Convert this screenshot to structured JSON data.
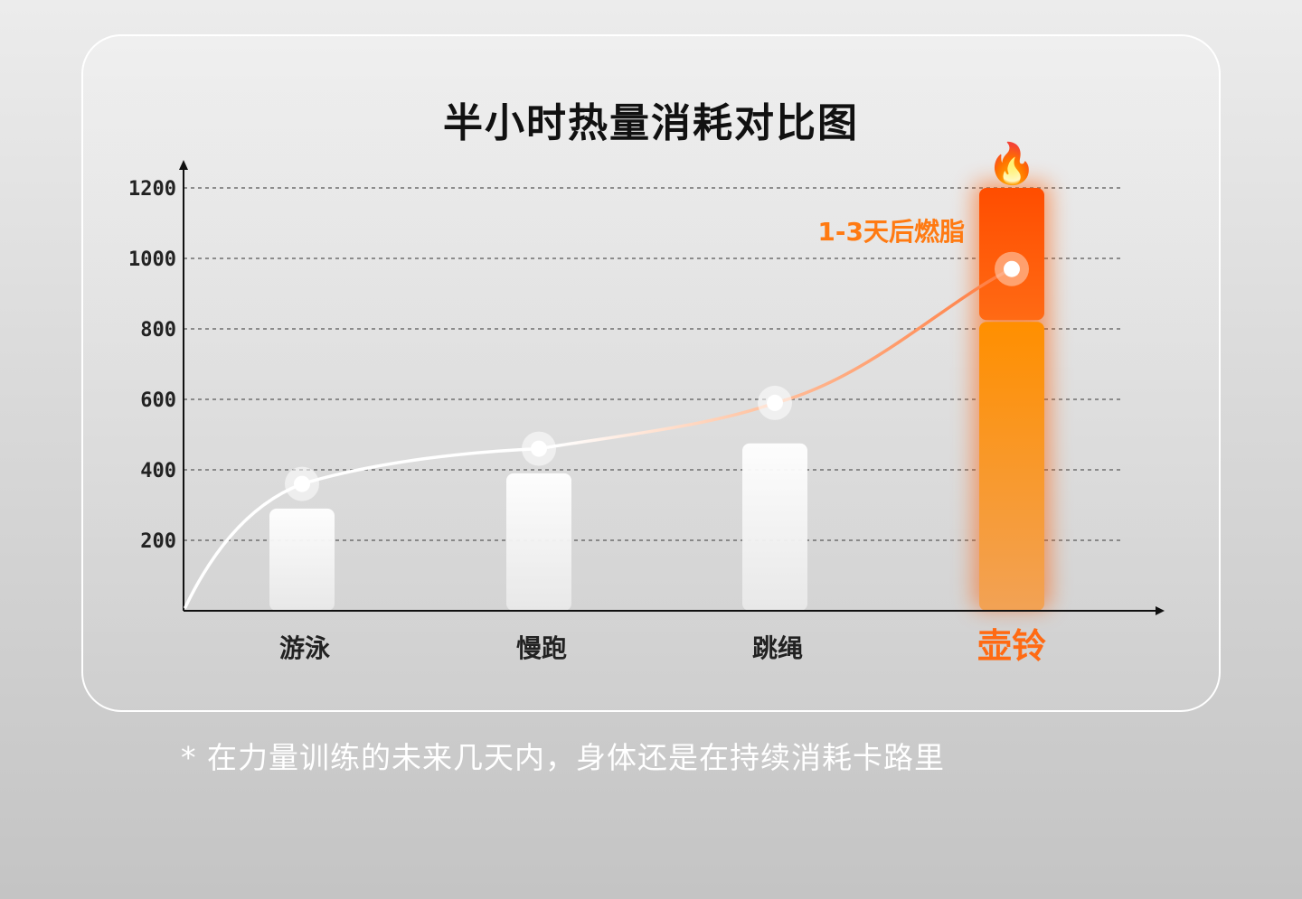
{
  "title": "半小时热量消耗对比图",
  "footnote": "* 在力量训练的未来几天内，身体还是在持续消耗卡路里",
  "chart_data": {
    "type": "bar",
    "title": "半小时热量消耗对比图",
    "categories": [
      "游泳",
      "慢跑",
      "跳绳",
      "壶铃"
    ],
    "values": [
      290,
      390,
      475,
      1200
    ],
    "highlight_index": 3,
    "stacked_lower_value": 820,
    "curve_points": [
      {
        "category": "游泳",
        "value": 360
      },
      {
        "category": "慢跑",
        "value": 460
      },
      {
        "category": "跳绳",
        "value": 590
      },
      {
        "category": "壶铃",
        "value": 970
      }
    ],
    "annotation": "1-3天后燃脂",
    "y_ticks": [
      200,
      400,
      600,
      800,
      1000,
      1200
    ],
    "ylim": [
      0,
      1200
    ],
    "xlabel": "",
    "ylabel": "",
    "grid": true,
    "colors": {
      "bar": "#ffffff",
      "highlight_top": "#ff4d00",
      "highlight_mid": "#ff9a0f",
      "highlight_bottom": "#f2a255",
      "accent_text": "#ff6a13",
      "curve": "#ff7a3d"
    }
  },
  "icons": {
    "fire": "fire-icon"
  }
}
